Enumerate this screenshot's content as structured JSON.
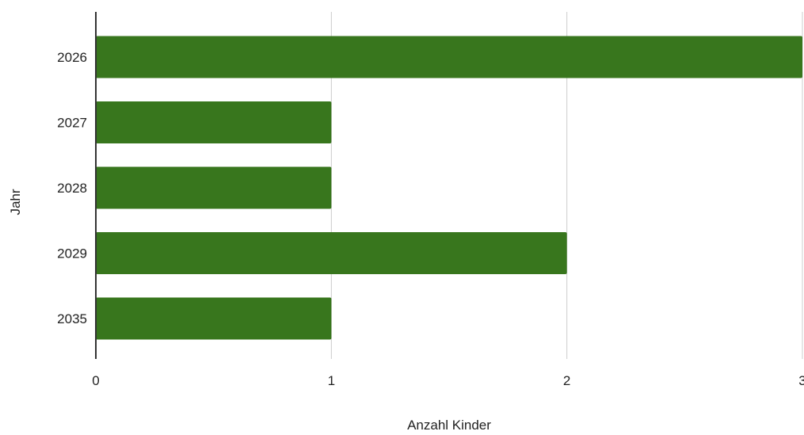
{
  "chart_data": {
    "type": "bar",
    "orientation": "horizontal",
    "title": "",
    "xlabel": "Anzahl Kinder",
    "ylabel": "Jahr",
    "categories": [
      "2026",
      "2027",
      "2028",
      "2029",
      "2035"
    ],
    "values": [
      3,
      1,
      1,
      2,
      1
    ],
    "xlim": [
      0,
      3
    ],
    "xticks": [
      "0",
      "1",
      "2",
      "3"
    ],
    "grid": true,
    "legend": "none",
    "colors": {
      "bar": "#38761d",
      "grid": "#cccccc",
      "axis": "#333333"
    }
  }
}
